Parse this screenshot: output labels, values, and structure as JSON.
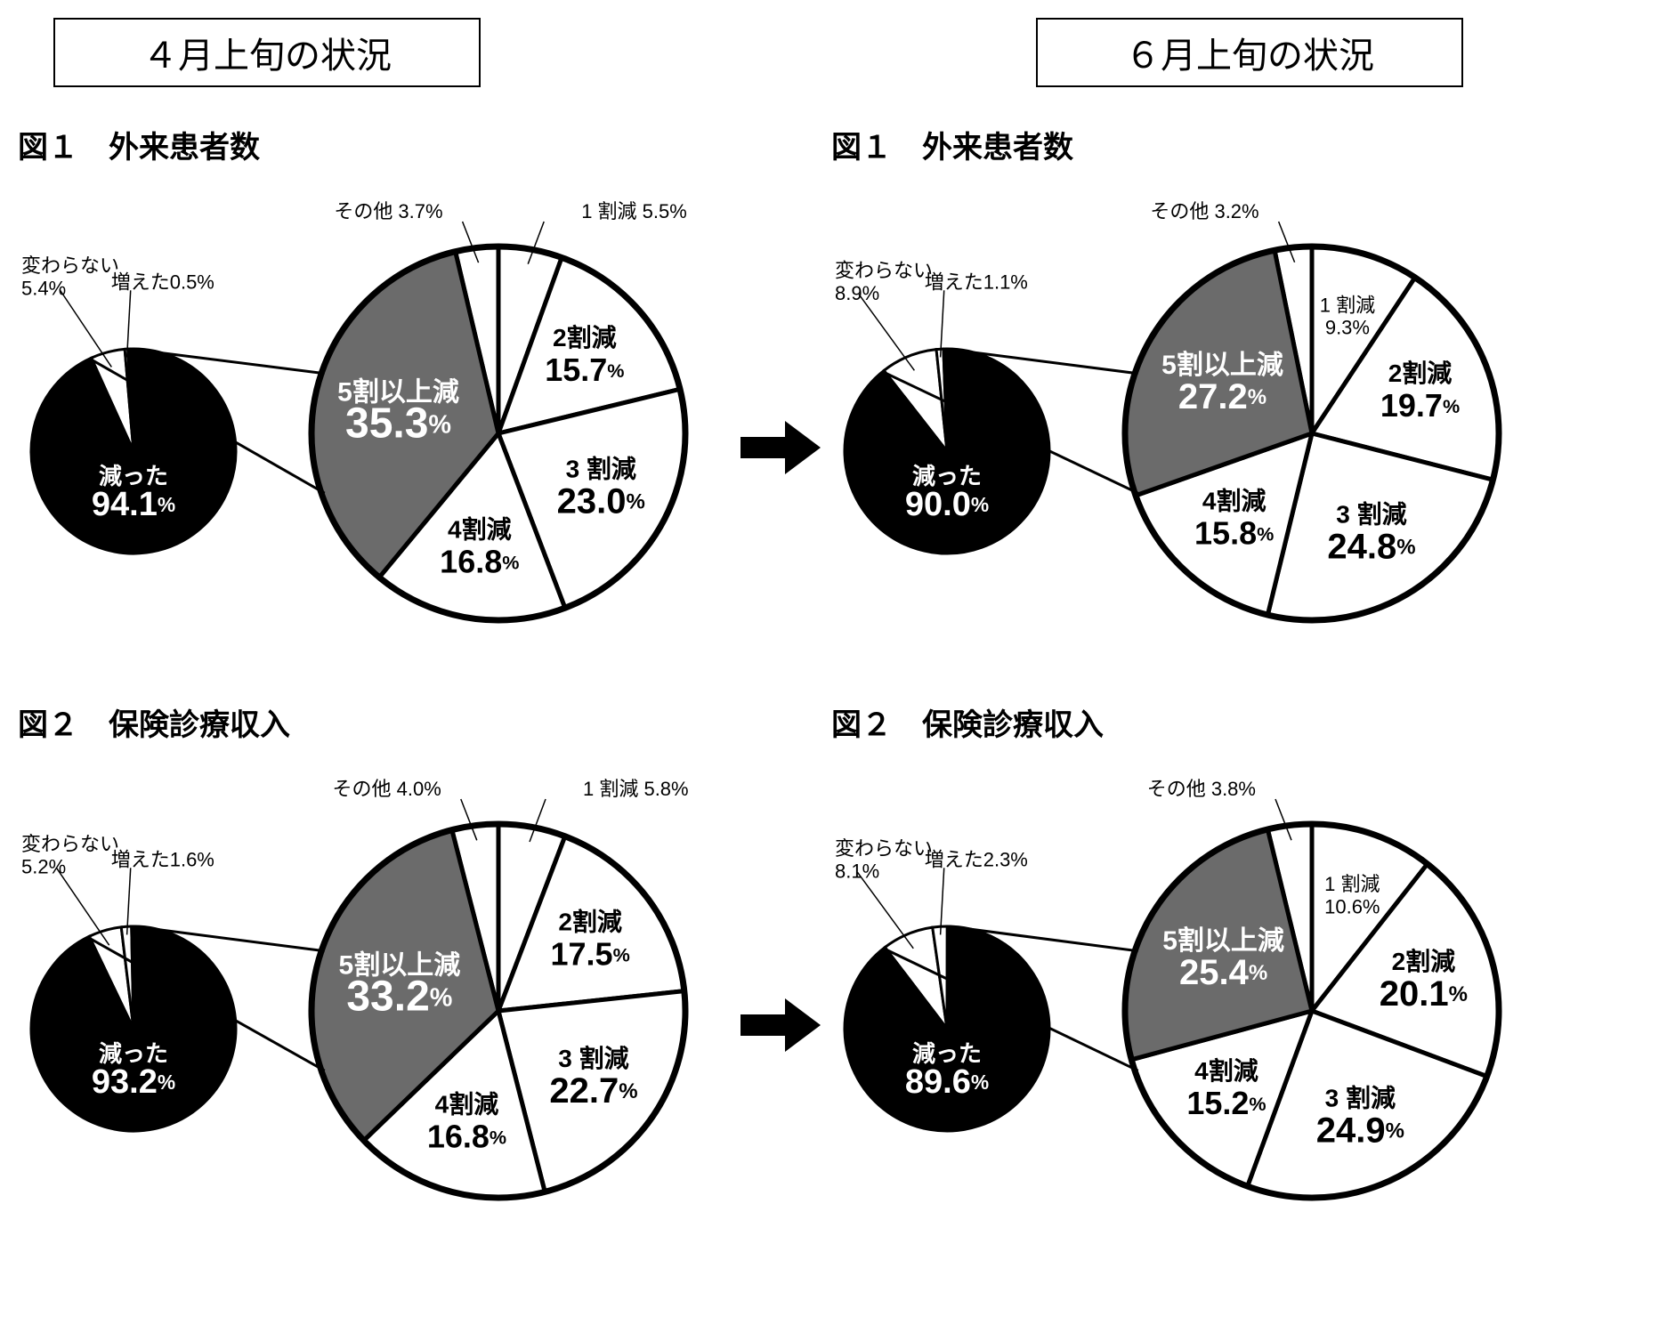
{
  "colors": {
    "black": "#000000",
    "white": "#ffffff",
    "gray": "#6b6b6b",
    "stroke": "#000000"
  },
  "stroke_width_small": 4,
  "stroke_width_large": 6,
  "header_left": "４月上旬の状況",
  "header_right": "６月上旬の状況",
  "panels": [
    {
      "fig_title": "図１　外来患者数",
      "side": "left",
      "small_pie": {
        "slices": [
          {
            "label": "減った",
            "value": 94.1,
            "color": "#000000",
            "text_color": "#ffffff"
          },
          {
            "label": "変わらない",
            "value": 5.4,
            "color": "#ffffff",
            "text_color": "#000000",
            "annot": "変わらない\n5.4%"
          },
          {
            "label": "増えた",
            "value": 0.5,
            "color": "#ffffff",
            "text_color": "#000000",
            "annot": "増えた0.5%"
          }
        ]
      },
      "large_pie": {
        "slices": [
          {
            "label": "その他",
            "value": 3.7,
            "color": "#ffffff",
            "annot_above": "その他 3.7%"
          },
          {
            "label": "1 割減",
            "value": 5.5,
            "color": "#ffffff",
            "annot_above": "1 割減 5.5%"
          },
          {
            "label": "2割減",
            "value": 15.7,
            "color": "#ffffff"
          },
          {
            "label": "3 割減",
            "value": 23.0,
            "color": "#ffffff"
          },
          {
            "label": "4割減",
            "value": 16.8,
            "color": "#ffffff"
          },
          {
            "label": "5割以上減",
            "value": 35.3,
            "color": "#6b6b6b",
            "text_color": "#ffffff"
          }
        ]
      }
    },
    {
      "fig_title": "図１　外来患者数",
      "side": "right",
      "small_pie": {
        "slices": [
          {
            "label": "減った",
            "value": 90.0,
            "color": "#000000",
            "text_color": "#ffffff"
          },
          {
            "label": "変わらない",
            "value": 8.9,
            "color": "#ffffff",
            "text_color": "#000000",
            "annot": "変わらない\n8.9%"
          },
          {
            "label": "増えた",
            "value": 1.1,
            "color": "#ffffff",
            "text_color": "#000000",
            "annot": "増えた1.1%"
          }
        ]
      },
      "large_pie": {
        "slices": [
          {
            "label": "その他",
            "value": 3.2,
            "color": "#ffffff",
            "annot_above": "その他 3.2%"
          },
          {
            "label": "1 割減",
            "value": 9.3,
            "color": "#ffffff",
            "annot_side": "1 割減\n9.3%"
          },
          {
            "label": "2割減",
            "value": 19.7,
            "color": "#ffffff"
          },
          {
            "label": "3 割減",
            "value": 24.8,
            "color": "#ffffff"
          },
          {
            "label": "4割減",
            "value": 15.8,
            "color": "#ffffff"
          },
          {
            "label": "5割以上減",
            "value": 27.2,
            "color": "#6b6b6b",
            "text_color": "#ffffff"
          }
        ]
      }
    },
    {
      "fig_title": "図２　保険診療収入",
      "side": "left",
      "small_pie": {
        "slices": [
          {
            "label": "減った",
            "value": 93.2,
            "color": "#000000",
            "text_color": "#ffffff"
          },
          {
            "label": "変わらない",
            "value": 5.2,
            "color": "#ffffff",
            "text_color": "#000000",
            "annot": "変わらない\n5.2%"
          },
          {
            "label": "増えた",
            "value": 1.6,
            "color": "#ffffff",
            "text_color": "#000000",
            "annot": "増えた1.6%"
          }
        ]
      },
      "large_pie": {
        "slices": [
          {
            "label": "その他",
            "value": 4.0,
            "color": "#ffffff",
            "annot_above": "その他 4.0%"
          },
          {
            "label": "1 割減",
            "value": 5.8,
            "color": "#ffffff",
            "annot_above": "1 割減 5.8%"
          },
          {
            "label": "2割減",
            "value": 17.5,
            "color": "#ffffff"
          },
          {
            "label": "3 割減",
            "value": 22.7,
            "color": "#ffffff"
          },
          {
            "label": "4割減",
            "value": 16.8,
            "color": "#ffffff"
          },
          {
            "label": "5割以上減",
            "value": 33.2,
            "color": "#6b6b6b",
            "text_color": "#ffffff"
          }
        ]
      }
    },
    {
      "fig_title": "図２　保険診療収入",
      "side": "right",
      "small_pie": {
        "slices": [
          {
            "label": "減った",
            "value": 89.6,
            "color": "#000000",
            "text_color": "#ffffff"
          },
          {
            "label": "変わらない",
            "value": 8.1,
            "color": "#ffffff",
            "text_color": "#000000",
            "annot": "変わらない\n8.1%"
          },
          {
            "label": "増えた",
            "value": 2.3,
            "color": "#ffffff",
            "text_color": "#000000",
            "annot": "増えた2.3%"
          }
        ]
      },
      "large_pie": {
        "slices": [
          {
            "label": "その他",
            "value": 3.8,
            "color": "#ffffff",
            "annot_above": "その他 3.8%"
          },
          {
            "label": "1 割減",
            "value": 10.6,
            "color": "#ffffff",
            "annot_side": "1 割減\n10.6%"
          },
          {
            "label": "2割減",
            "value": 20.1,
            "color": "#ffffff"
          },
          {
            "label": "3 割減",
            "value": 24.9,
            "color": "#ffffff"
          },
          {
            "label": "4割減",
            "value": 15.2,
            "color": "#ffffff"
          },
          {
            "label": "5割以上減",
            "value": 25.4,
            "color": "#6b6b6b",
            "text_color": "#ffffff"
          }
        ]
      }
    }
  ]
}
